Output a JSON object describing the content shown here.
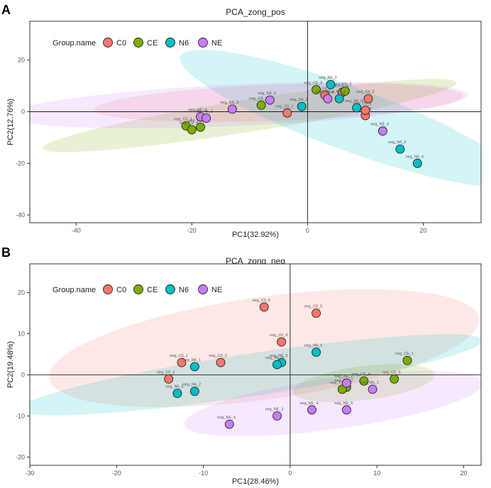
{
  "legend_title": "Group.name",
  "colors": {
    "C0": "#f8766d",
    "CE": "#7cae00",
    "N6": "#00bfc4",
    "NE": "#c77cff",
    "axis": "#333333",
    "grid_line": "#000000"
  },
  "chart_data": [
    {
      "panel_label": "A",
      "type": "scatter",
      "title": "PCA_zong_pos",
      "xlabel": "PC1(32.92%)",
      "ylabel": "PC2(12.76%)",
      "xlim": [
        -48,
        30
      ],
      "ylim": [
        -43,
        35
      ],
      "xticks": [
        -40,
        -20,
        0,
        20
      ],
      "yticks": [
        -40,
        -20,
        0,
        20
      ],
      "legend": [
        "C0",
        "CE",
        "N6",
        "NE"
      ],
      "groups": [
        {
          "name": "C0",
          "ellipse": {
            "cx": -5,
            "cy": 3.5,
            "rx": 32,
            "ry": 7,
            "angle": 5
          },
          "points": [
            {
              "x": -3.5,
              "y": -0.5,
              "label": "neg_C0_1"
            },
            {
              "x": 3,
              "y": 6.5,
              "label": "neg_C0_2"
            },
            {
              "x": 6,
              "y": 7.5,
              "label": "neg_C0_3"
            },
            {
              "x": 10,
              "y": -1.5,
              "label": "neg_C0_4"
            },
            {
              "x": 10,
              "y": 0.5,
              "label": "neg_C0_5"
            },
            {
              "x": 10.5,
              "y": 5,
              "label": "neg_C0_6"
            }
          ]
        },
        {
          "name": "CE",
          "ellipse": {
            "cx": -10,
            "cy": -1.5,
            "rx": 38,
            "ry": 6,
            "angle": 20
          },
          "points": [
            {
              "x": -21,
              "y": -5.5,
              "label": "neg_CE_1"
            },
            {
              "x": -8,
              "y": 2.5,
              "label": "neg_CE_2"
            },
            {
              "x": 6.5,
              "y": 8,
              "label": "neg_CE_3"
            },
            {
              "x": -20,
              "y": -7,
              "label": "neg_CE_4"
            },
            {
              "x": -18.5,
              "y": -6,
              "label": "neg_CE_5"
            },
            {
              "x": 1.5,
              "y": 8.5,
              "label": "neg_CE_6"
            }
          ]
        },
        {
          "name": "N6",
          "ellipse": {
            "cx": 7,
            "cy": -2.5,
            "rx": 38,
            "ry": 10,
            "angle": -42
          },
          "points": [
            {
              "x": -1,
              "y": 2,
              "label": "neg_N6_1"
            },
            {
              "x": 4,
              "y": 10.5,
              "label": "neg_N6_2"
            },
            {
              "x": 5.5,
              "y": 5,
              "label": "neg_N6_3"
            },
            {
              "x": 19,
              "y": -20,
              "label": "neg_N6_4"
            },
            {
              "x": 16,
              "y": -14.5,
              "label": "neg_N6_5"
            },
            {
              "x": 8.5,
              "y": 1.5,
              "label": "neg_N6_6"
            }
          ]
        },
        {
          "name": "NE",
          "ellipse": {
            "cx": -12,
            "cy": 2.5,
            "rx": 40,
            "ry": 8,
            "angle": 6
          },
          "points": [
            {
              "x": -18.5,
              "y": -2,
              "label": "neg_NE_1"
            },
            {
              "x": -17.5,
              "y": -2.5,
              "label": "neg_NE_2"
            },
            {
              "x": -13,
              "y": 1,
              "label": "neg_NE_3"
            },
            {
              "x": 3.5,
              "y": 5,
              "label": "neg_NE_4"
            },
            {
              "x": -6.5,
              "y": 4.5,
              "label": "neg_NE_5"
            },
            {
              "x": 13,
              "y": -7.5,
              "label": "neg_NE_6"
            }
          ]
        }
      ]
    },
    {
      "panel_label": "B",
      "type": "scatter",
      "title": "PCA_zong_neg",
      "xlabel": "PC1(28.46%)",
      "ylabel": "PC2(19.48%)",
      "xlim": [
        -30,
        22
      ],
      "ylim": [
        -22,
        27
      ],
      "xticks": [
        -30,
        -20,
        -10,
        0,
        10,
        20
      ],
      "yticks": [
        -20,
        -10,
        0,
        10,
        20
      ],
      "legend": [
        "C0",
        "CE",
        "N6",
        "NE"
      ],
      "groups": [
        {
          "name": "C0",
          "ellipse": {
            "cx": -3,
            "cy": 6.5,
            "rx": 26,
            "ry": 12,
            "angle": 20
          },
          "points": [
            {
              "x": -12.5,
              "y": 3,
              "label": "neg_C0_1"
            },
            {
              "x": -8,
              "y": 3,
              "label": "neg_C0_2"
            },
            {
              "x": -14,
              "y": -1,
              "label": "neg_C0_3"
            },
            {
              "x": -1,
              "y": 8,
              "label": "neg_C0_4"
            },
            {
              "x": 3,
              "y": 15,
              "label": "neg_C0_5"
            },
            {
              "x": -3,
              "y": 16.5,
              "label": "neg_C0_6"
            }
          ]
        },
        {
          "name": "CE",
          "ellipse": {
            "cx": 8.5,
            "cy": -2,
            "rx": 8.5,
            "ry": 4,
            "angle": 18
          },
          "points": [
            {
              "x": 13.5,
              "y": 3.5,
              "label": "neg_CE_1"
            },
            {
              "x": 6.5,
              "y": -3,
              "label": "neg_CE_2"
            },
            {
              "x": 6,
              "y": -3.5,
              "label": "neg_CE_3"
            },
            {
              "x": 8.5,
              "y": -1.5,
              "label": "neg_CE_4"
            },
            {
              "x": 12,
              "y": -1,
              "label": "neg_CE_5"
            }
          ]
        },
        {
          "name": "N6",
          "ellipse": {
            "cx": -4.5,
            "cy": 0,
            "rx": 28,
            "ry": 5,
            "angle": 18
          },
          "points": [
            {
              "x": -11,
              "y": 2,
              "label": "neg_N6_1"
            },
            {
              "x": -11,
              "y": -4,
              "label": "neg_N6_2"
            },
            {
              "x": -1,
              "y": 3,
              "label": "neg_N6_3"
            },
            {
              "x": -1.5,
              "y": 2.5,
              "label": "neg_N6_4"
            },
            {
              "x": -13,
              "y": -4.5,
              "label": "neg_N6_5"
            },
            {
              "x": 3,
              "y": 5.5,
              "label": "neg_N6_6"
            }
          ]
        },
        {
          "name": "NE",
          "ellipse": {
            "cx": 5,
            "cy": -7,
            "rx": 18,
            "ry": 6,
            "angle": 18
          },
          "points": [
            {
              "x": 9.5,
              "y": -3.5,
              "label": "neg_NE_1"
            },
            {
              "x": 6.5,
              "y": -2,
              "label": "neg_NE_2"
            },
            {
              "x": -1.5,
              "y": -10,
              "label": "neg_NE_3"
            },
            {
              "x": 2.5,
              "y": -8.5,
              "label": "neg_NE_4"
            },
            {
              "x": -7,
              "y": -12,
              "label": "neg_NE_5"
            },
            {
              "x": 6.5,
              "y": -8.5,
              "label": "neg_NE_6"
            }
          ]
        }
      ]
    }
  ]
}
